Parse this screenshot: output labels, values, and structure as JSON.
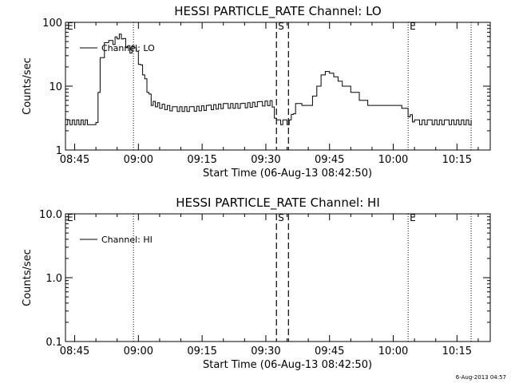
{
  "footer": {
    "timestamp": "6-Aug-2013 04:57"
  },
  "chart_data": [
    {
      "type": "line",
      "title": "HESSI PARTICLE_RATE Channel: LO",
      "xlabel": "Start Time (06-Aug-13 08:42:50)",
      "ylabel": "Counts/sec",
      "yscale": "log",
      "ylim": [
        1,
        100
      ],
      "xlim": [
        "08:42:50",
        "10:22:50"
      ],
      "x_ticks": [
        "08:45",
        "09:00",
        "09:15",
        "09:30",
        "09:45",
        "10:00",
        "10:15"
      ],
      "y_ticks": [
        "1",
        "10",
        "100"
      ],
      "legend": {
        "position": "top-left",
        "entries": [
          "Channel: LO"
        ]
      },
      "markers": [
        {
          "label": "E",
          "time": "08:42:50",
          "style": "none"
        },
        {
          "label": "",
          "time": "08:58:50",
          "style": "dotted"
        },
        {
          "label": "S",
          "time": "09:32:30",
          "style": "dashed"
        },
        {
          "label": "",
          "time": "09:35:20",
          "style": "dashed"
        },
        {
          "label": "E",
          "time": "10:03:30",
          "style": "dotted"
        },
        {
          "label": "",
          "time": "10:18:20",
          "style": "dotted"
        }
      ],
      "series": [
        {
          "name": "Channel: LO",
          "x": [
            "08:42:50",
            "08:46:00",
            "08:48:00",
            "08:50:00",
            "08:50:30",
            "08:51:00",
            "08:52:00",
            "08:53:00",
            "08:54:00",
            "08:55:00",
            "08:56:00",
            "08:57:00",
            "08:58:00",
            "08:59:00",
            "09:00:00",
            "09:01:00",
            "09:02:00",
            "09:03:00",
            "09:05:00",
            "09:08:00",
            "09:12:00",
            "09:16:00",
            "09:20:00",
            "09:24:00",
            "09:28:00",
            "09:31:00",
            "09:32:30",
            "09:34:00",
            "09:35:30",
            "09:37:00",
            "09:38:30",
            "09:40:00",
            "09:41:00",
            "09:42:00",
            "09:43:00",
            "09:44:00",
            "09:45:00",
            "09:46:00",
            "09:47:00",
            "09:48:00",
            "09:50:00",
            "09:52:00",
            "09:54:00",
            "09:58:00",
            "10:02:00",
            "10:03:30",
            "10:05:00",
            "10:08:00",
            "10:12:00",
            "10:18:20"
          ],
          "y": [
            2.5,
            2.5,
            2.5,
            2.7,
            8,
            28,
            48,
            52,
            45,
            55,
            55,
            40,
            33,
            40,
            22,
            15,
            8,
            5,
            4.5,
            4,
            4,
            4.2,
            4.5,
            4.5,
            4.8,
            5,
            2.5,
            2.5,
            2.5,
            4.5,
            5,
            5,
            7,
            10,
            15,
            17,
            16,
            14,
            12,
            10,
            8,
            6,
            5,
            5,
            4.5,
            3.3,
            2.5,
            2.5,
            2.5,
            2.5
          ],
          "noise_band": [
            [
              0,
              2
            ],
            [
              8,
              24
            ],
            [
              24,
              29
            ],
            [
              45,
              49
            ]
          ]
        }
      ]
    },
    {
      "type": "line",
      "title": "HESSI PARTICLE_RATE Channel: HI",
      "xlabel": "Start Time (06-Aug-13 08:42:50)",
      "ylabel": "Counts/sec",
      "yscale": "log",
      "ylim": [
        0.1,
        10.0
      ],
      "xlim": [
        "08:42:50",
        "10:22:50"
      ],
      "x_ticks": [
        "08:45",
        "09:00",
        "09:15",
        "09:30",
        "09:45",
        "10:00",
        "10:15"
      ],
      "y_ticks": [
        "0.1",
        "1.0",
        "10.0"
      ],
      "legend": {
        "position": "top-left",
        "entries": [
          "Channel: HI"
        ]
      },
      "markers": [
        {
          "label": "E",
          "time": "08:42:50",
          "style": "none"
        },
        {
          "label": "",
          "time": "08:58:50",
          "style": "dotted"
        },
        {
          "label": "S",
          "time": "09:32:30",
          "style": "dashed"
        },
        {
          "label": "",
          "time": "09:35:20",
          "style": "dashed"
        },
        {
          "label": "E",
          "time": "10:03:30",
          "style": "dotted"
        },
        {
          "label": "",
          "time": "10:18:20",
          "style": "dotted"
        }
      ],
      "series": [
        {
          "name": "Channel: HI",
          "x": [],
          "y": []
        }
      ]
    }
  ]
}
